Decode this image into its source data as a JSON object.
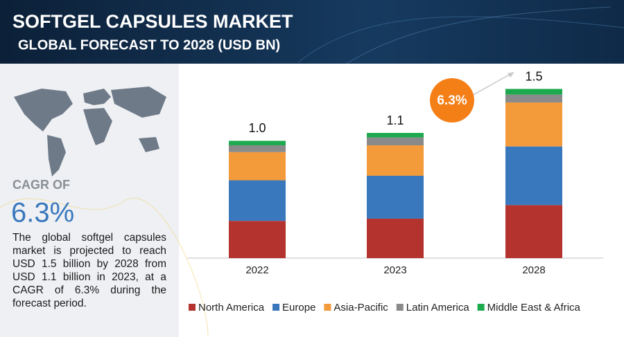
{
  "chart_data": {
    "type": "stacked-bar",
    "title": "SOFTGEL CAPSULES MARKET",
    "subtitle": "GLOBAL FORECAST TO 2028 (USD BN)",
    "categories": [
      "2022",
      "2023",
      "2028"
    ],
    "series": [
      {
        "name": "North America",
        "color": "#b5332e",
        "values": [
          0.33,
          0.35,
          0.47
        ]
      },
      {
        "name": "Europe",
        "color": "#3a78bd",
        "values": [
          0.36,
          0.38,
          0.52
        ]
      },
      {
        "name": "Asia-Pacific",
        "color": "#f39a3a",
        "values": [
          0.25,
          0.27,
          0.39
        ]
      },
      {
        "name": "Latin America",
        "color": "#8a8a8a",
        "values": [
          0.06,
          0.07,
          0.07
        ]
      },
      {
        "name": "Middle East & Africa",
        "color": "#1daa4f",
        "values": [
          0.04,
          0.04,
          0.05
        ]
      }
    ],
    "total_labels": [
      "1.0",
      "1.1",
      "1.5"
    ],
    "annotation": "6.3%",
    "legend": "bottom"
  },
  "sidebar": {
    "cagr_label": "CAGR OF",
    "cagr_value": "6.3%",
    "description": "The global softgel capsules market is projected to reach USD 1.5 billion by 2028 from USD 1.1 billion in 2023, at a CAGR of 6.3% during the forecast period."
  }
}
